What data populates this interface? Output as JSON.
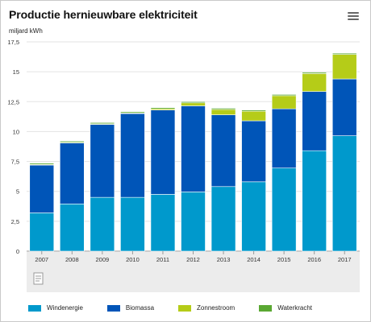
{
  "header": {
    "title": "Productie hernieuwbare elektriciteit",
    "unit_label": "miljard kWh",
    "menu_icon": "hamburger-menu-icon"
  },
  "toolbar": {
    "export_icon": "document-export-icon"
  },
  "chart_data": {
    "type": "bar",
    "stacked": true,
    "title": "Productie hernieuwbare elektriciteit",
    "ylabel": "miljard kWh",
    "xlabel": "",
    "ylim": [
      0,
      17.5
    ],
    "yticks": [
      "0",
      "2,5",
      "5",
      "7,5",
      "10",
      "12,5",
      "15",
      "17,5"
    ],
    "grid": true,
    "legend_position": "bottom",
    "categories": [
      "2007",
      "2008",
      "2009",
      "2010",
      "2011",
      "2012",
      "2013",
      "2014",
      "2015",
      "2016",
      "2017"
    ],
    "series": [
      {
        "name": "Windenergie",
        "color": "#0099cc",
        "values": [
          3.2,
          3.95,
          4.5,
          4.5,
          4.75,
          4.95,
          5.4,
          5.8,
          6.95,
          8.4,
          9.65
        ]
      },
      {
        "name": "Biomassa",
        "color": "#0055b8",
        "values": [
          4.0,
          5.1,
          6.1,
          7.0,
          7.05,
          7.2,
          6.0,
          5.1,
          4.95,
          4.95,
          4.75
        ]
      },
      {
        "name": "Zonnestroom",
        "color": "#b5cc18",
        "values": [
          0.05,
          0.05,
          0.05,
          0.05,
          0.1,
          0.25,
          0.45,
          0.8,
          1.1,
          1.5,
          2.05
        ]
      },
      {
        "name": "Waterkracht",
        "color": "#5aa832",
        "values": [
          0.1,
          0.1,
          0.1,
          0.1,
          0.1,
          0.1,
          0.1,
          0.1,
          0.1,
          0.1,
          0.1
        ]
      }
    ]
  }
}
